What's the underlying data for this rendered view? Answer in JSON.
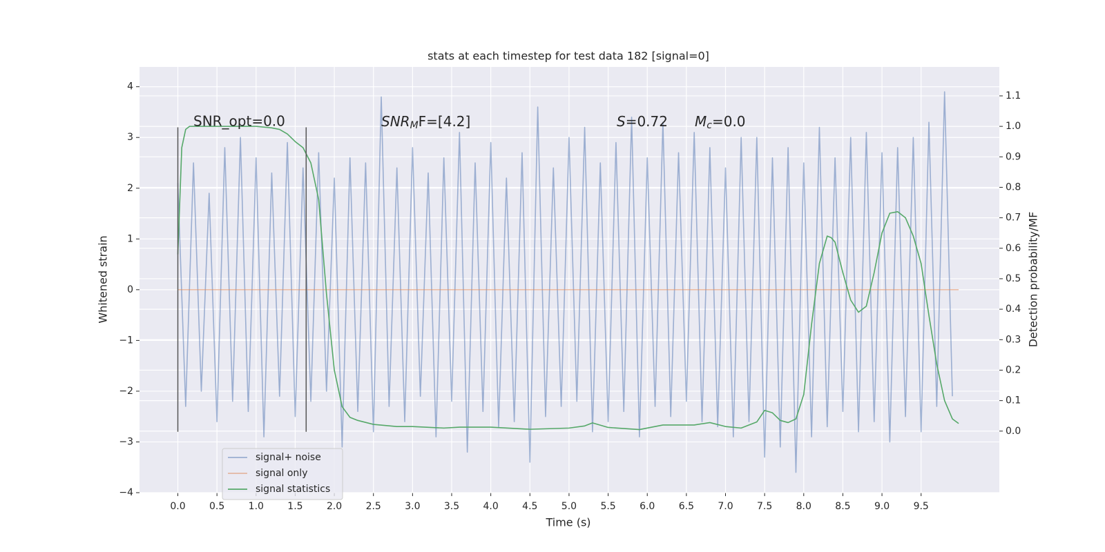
{
  "chart_data": {
    "type": "line",
    "title": "stats at each timestep for test data 182 [signal=0]",
    "xlabel": "Time (s)",
    "ylabel": "Whitened strain",
    "y2label": "Detection probability/MF",
    "annotations": [
      "SNR_opt=0.0",
      [
        "SNR",
        "M",
        "F=[4.2]"
      ],
      [
        "S",
        "=0.72"
      ],
      [
        "M",
        "c",
        "=0.0"
      ]
    ],
    "xlim": [
      -0.49,
      10.5
    ],
    "ylim": [
      -4,
      4.39
    ],
    "y2lim": [
      -0.202,
      1.195
    ],
    "xticks": [
      {
        "value": 0,
        "label": "0.0"
      },
      0.5,
      {
        "value": 1,
        "label": "1.0"
      },
      1.5,
      {
        "value": 2,
        "label": "2.0"
      },
      2.5,
      {
        "value": 3,
        "label": "3.0"
      },
      3.5,
      {
        "value": 4,
        "label": "4.0"
      },
      4.5,
      {
        "value": 5,
        "label": "5.0"
      },
      5.5,
      {
        "value": 6,
        "label": "6.0"
      },
      6.5,
      {
        "value": 7,
        "label": "7.0"
      },
      7.5,
      {
        "value": 8,
        "label": "8.0"
      },
      8.5,
      {
        "value": 9,
        "label": "9.0"
      },
      9.5
    ],
    "yticks": [
      {
        "value": -4,
        "label": "−4"
      },
      {
        "value": -3,
        "label": "−3"
      },
      {
        "value": -2,
        "label": "−2"
      },
      {
        "value": -1,
        "label": "−1"
      },
      0,
      1,
      2,
      3,
      4
    ],
    "y2ticks": [
      {
        "value": 0,
        "label": "0.0"
      },
      0.1,
      0.2,
      0.3,
      0.4,
      0.5,
      0.6,
      0.7,
      0.8,
      0.9,
      {
        "value": 1,
        "label": "1.0"
      },
      1.1
    ],
    "grid": true,
    "legend": "lower left",
    "vlines": {
      "x": [
        0,
        1.64
      ],
      "ymin": -2.8,
      "ymax": 3.2,
      "color": "#555555"
    },
    "series": [
      {
        "name": "signal+ noise",
        "color": "#4c72b0",
        "alpha": 0.5,
        "x": [
          0.0,
          0.1,
          0.2,
          0.3,
          0.4,
          0.5,
          0.6,
          0.7,
          0.8,
          0.9,
          1.0,
          1.1,
          1.2,
          1.3,
          1.4,
          1.5,
          1.6,
          1.7,
          1.8,
          1.9,
          2.0,
          2.1,
          2.2,
          2.3,
          2.4,
          2.5,
          2.6,
          2.7,
          2.8,
          2.9,
          3.0,
          3.1,
          3.2,
          3.3,
          3.4,
          3.5,
          3.6,
          3.7,
          3.8,
          3.9,
          4.0,
          4.1,
          4.2,
          4.3,
          4.4,
          4.5,
          4.6,
          4.7,
          4.8,
          4.9,
          5.0,
          5.1,
          5.2,
          5.3,
          5.4,
          5.5,
          5.6,
          5.7,
          5.8,
          5.9,
          6.0,
          6.1,
          6.2,
          6.3,
          6.4,
          6.5,
          6.6,
          6.7,
          6.8,
          6.9,
          7.0,
          7.1,
          7.2,
          7.3,
          7.4,
          7.5,
          7.6,
          7.7,
          7.8,
          7.9,
          8.0,
          8.1,
          8.2,
          8.3,
          8.4,
          8.5,
          8.6,
          8.7,
          8.8,
          8.9,
          9.0,
          9.1,
          9.2,
          9.3,
          9.4,
          9.5,
          9.6,
          9.7,
          9.8,
          9.9
        ],
        "values": [
          2.1,
          -2.3,
          2.5,
          -2.0,
          1.9,
          -2.6,
          2.8,
          -2.2,
          3.0,
          -2.4,
          2.6,
          -2.9,
          2.3,
          -2.1,
          2.9,
          -2.5,
          2.4,
          -2.2,
          2.7,
          -2.0,
          2.2,
          -3.1,
          2.6,
          -2.4,
          2.5,
          -2.8,
          3.8,
          -2.3,
          2.4,
          -2.6,
          2.8,
          -2.1,
          2.3,
          -2.9,
          2.6,
          -2.2,
          3.1,
          -3.2,
          2.5,
          -2.4,
          2.9,
          -2.7,
          2.2,
          -2.6,
          2.7,
          -3.4,
          3.6,
          -2.5,
          2.4,
          -2.3,
          3.0,
          -2.2,
          3.2,
          -2.8,
          2.5,
          -2.6,
          2.9,
          -2.4,
          3.4,
          -2.9,
          2.6,
          -2.3,
          3.3,
          -2.5,
          2.7,
          -2.2,
          3.1,
          -2.6,
          2.8,
          -2.7,
          2.4,
          -2.9,
          3.0,
          -2.6,
          3.0,
          -3.3,
          2.6,
          -3.1,
          2.8,
          -3.6,
          2.5,
          -2.9,
          3.2,
          -2.7,
          2.6,
          -2.4,
          3.0,
          -2.8,
          3.1,
          -2.6,
          2.7,
          -3.0,
          2.8,
          -2.5,
          3.0,
          -2.8,
          3.3,
          -2.3,
          3.9,
          -2.1
        ]
      },
      {
        "name": "signal only",
        "color": "#dd8452",
        "alpha": 0.5,
        "x": [
          0.0,
          9.98
        ],
        "values": [
          0,
          0
        ]
      },
      {
        "name": "signal statistics",
        "color": "#55a868",
        "alpha": 1,
        "axis": "y2",
        "x": [
          0.0,
          0.05,
          0.1,
          0.15,
          0.3,
          0.6,
          1.0,
          1.2,
          1.3,
          1.4,
          1.5,
          1.6,
          1.7,
          1.8,
          1.9,
          2.0,
          2.1,
          2.2,
          2.3,
          2.5,
          2.8,
          3.0,
          3.4,
          3.6,
          4.0,
          4.5,
          5.0,
          5.2,
          5.3,
          5.5,
          5.9,
          6.2,
          6.6,
          6.8,
          7.0,
          7.2,
          7.4,
          7.5,
          7.6,
          7.7,
          7.8,
          7.9,
          8.0,
          8.1,
          8.2,
          8.3,
          8.35,
          8.4,
          8.5,
          8.6,
          8.7,
          8.8,
          8.9,
          9.0,
          9.1,
          9.2,
          9.3,
          9.4,
          9.5,
          9.6,
          9.7,
          9.8,
          9.9,
          9.98
        ],
        "values": [
          0.58,
          0.93,
          0.99,
          1.0,
          1.0,
          1.0,
          1.0,
          0.995,
          0.99,
          0.975,
          0.95,
          0.93,
          0.88,
          0.76,
          0.45,
          0.2,
          0.08,
          0.045,
          0.035,
          0.022,
          0.015,
          0.015,
          0.01,
          0.013,
          0.013,
          0.006,
          0.01,
          0.017,
          0.027,
          0.012,
          0.005,
          0.02,
          0.02,
          0.028,
          0.015,
          0.01,
          0.03,
          0.068,
          0.06,
          0.035,
          0.028,
          0.04,
          0.12,
          0.35,
          0.55,
          0.64,
          0.635,
          0.62,
          0.52,
          0.43,
          0.39,
          0.41,
          0.52,
          0.65,
          0.715,
          0.72,
          0.7,
          0.64,
          0.55,
          0.38,
          0.22,
          0.1,
          0.04,
          0.025
        ]
      }
    ]
  }
}
